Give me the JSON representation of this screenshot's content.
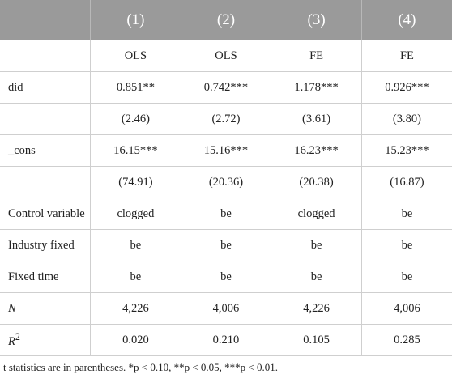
{
  "table": {
    "header": [
      "(1)",
      "(2)",
      "(3)",
      "(4)"
    ],
    "rows": [
      {
        "label": null,
        "cells": [
          "OLS",
          "OLS",
          "FE",
          "FE"
        ]
      },
      {
        "label": "did",
        "cells": [
          "0.851**",
          "0.742***",
          "1.178***",
          "0.926***"
        ]
      },
      {
        "label": null,
        "cells": [
          "(2.46)",
          "(2.72)",
          "(3.61)",
          "(3.80)"
        ]
      },
      {
        "label": "_cons",
        "cells": [
          "16.15***",
          "15.16***",
          "16.23***",
          "15.23***"
        ]
      },
      {
        "label": null,
        "cells": [
          "(74.91)",
          "(20.36)",
          "(20.38)",
          "(16.87)"
        ]
      },
      {
        "label": "Control variable",
        "cells": [
          "clogged",
          "be",
          "clogged",
          "be"
        ]
      },
      {
        "label": "Industry fixed",
        "cells": [
          "be",
          "be",
          "be",
          "be"
        ]
      },
      {
        "label": "Fixed time",
        "cells": [
          "be",
          "be",
          "be",
          "be"
        ]
      },
      {
        "label": "N",
        "italic": true,
        "cells": [
          "4,226",
          "4,006",
          "4,226",
          "4,006"
        ]
      },
      {
        "label": "R",
        "label_sup": "2",
        "italic": true,
        "cells": [
          "0.020",
          "0.210",
          "0.105",
          "0.285"
        ]
      }
    ],
    "footnote": "t statistics are in parentheses. *p < 0.10, **p < 0.05, ***p < 0.01."
  }
}
